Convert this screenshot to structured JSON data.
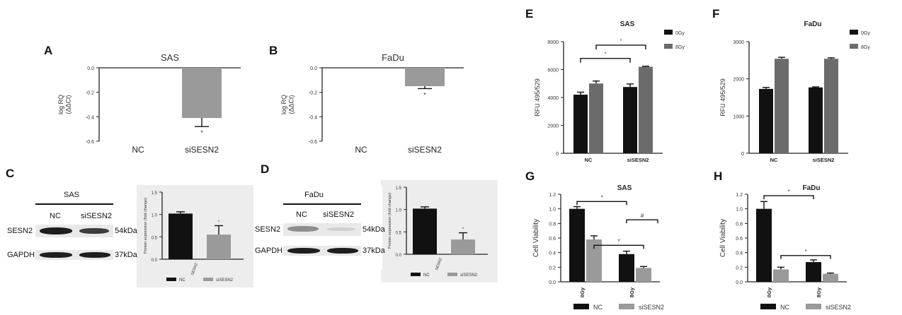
{
  "panels": {
    "A": "A",
    "B": "B",
    "C": "C",
    "D": "D",
    "E": "E",
    "F": "F",
    "G": "G",
    "H": "H"
  },
  "colors": {
    "black_bar": "#111111",
    "gray_bar": "#9a9a9a",
    "dark_gray_bar": "#6b6b6b"
  },
  "chart_data": [
    {
      "id": "A",
      "type": "bar",
      "title": "SAS",
      "ylabel": "log RQ\n(ΔΔCt)",
      "categories": [
        "NC",
        "siSESN2"
      ],
      "values": [
        0,
        -0.41
      ],
      "errors": [
        0,
        0.07
      ],
      "ylim": [
        -0.6,
        0.0
      ],
      "yticks": [
        "0.0",
        "-0.2",
        "-0.4",
        "-0.6"
      ],
      "annotations": [
        "*"
      ]
    },
    {
      "id": "B",
      "type": "bar",
      "title": "FaDu",
      "ylabel": "log RQ\n(ΔΔCt)",
      "categories": [
        "NC",
        "siSESN2"
      ],
      "values": [
        0,
        -0.15
      ],
      "errors": [
        0,
        0.02
      ],
      "ylim": [
        -0.6,
        0.0
      ],
      "yticks": [
        "0.0",
        "-0.2",
        "-0.4",
        "-0.6"
      ],
      "annotations": [
        "*"
      ]
    },
    {
      "id": "C",
      "type": "bar",
      "title": "",
      "ylabel": "Protein expression (fold change)",
      "xlabel": "SESN2",
      "series": [
        {
          "name": "NC",
          "values": [
            1.02
          ]
        },
        {
          "name": "siSESN2",
          "values": [
            0.55
          ]
        }
      ],
      "errors": [
        0.04,
        0.2
      ],
      "ylim": [
        0,
        1.5
      ],
      "yticks": [
        "0.0",
        "0.5",
        "1.0",
        "1.5"
      ],
      "annotations": [
        "*"
      ]
    },
    {
      "id": "D",
      "type": "bar",
      "title": "",
      "ylabel": "Protein expression (fold change)",
      "xlabel": "SESN2",
      "series": [
        {
          "name": "NC",
          "values": [
            1.02
          ]
        },
        {
          "name": "siSESN2",
          "values": [
            0.33
          ]
        }
      ],
      "errors": [
        0.04,
        0.15
      ],
      "ylim": [
        0,
        1.5
      ],
      "yticks": [
        "0.0",
        "0.5",
        "1.0",
        "1.5"
      ],
      "annotations": [
        "*"
      ]
    },
    {
      "id": "E",
      "type": "bar",
      "title": "SAS",
      "ylabel": "RFU 495/529",
      "categories": [
        "NC",
        "siSESN2"
      ],
      "series": [
        {
          "name": "0Gy",
          "values": [
            4200,
            4750
          ]
        },
        {
          "name": "8Gy",
          "values": [
            5000,
            6200
          ]
        }
      ],
      "errors": [
        [
          180,
          220
        ],
        [
          180,
          40
        ]
      ],
      "ylim": [
        0,
        8000
      ],
      "yticks": [
        "0",
        "2000",
        "4000",
        "6000",
        "8000"
      ],
      "legend": "top-right",
      "annotations": [
        "*",
        "*"
      ]
    },
    {
      "id": "F",
      "type": "bar",
      "title": "FaDu",
      "ylabel": "RFU 495/529",
      "categories": [
        "NC",
        "siSESN2"
      ],
      "series": [
        {
          "name": "0Gy",
          "values": [
            1730,
            1770
          ]
        },
        {
          "name": "8Gy",
          "values": [
            2540,
            2540
          ]
        }
      ],
      "errors": [
        [
          40,
          15
        ],
        [
          40,
          25
        ]
      ],
      "ylim": [
        0,
        3000
      ],
      "yticks": [
        "0",
        "1000",
        "2000",
        "3000"
      ],
      "legend": "top-right"
    },
    {
      "id": "G",
      "type": "bar",
      "title": "SAS",
      "ylabel": "Cell Viability",
      "categories": [
        "0Gy",
        "8Gy"
      ],
      "series": [
        {
          "name": "NC",
          "values": [
            1.0,
            0.38
          ]
        },
        {
          "name": "siSESN2",
          "values": [
            0.58,
            0.19
          ]
        }
      ],
      "errors": [
        [
          0.03,
          0.04
        ],
        [
          0.05,
          0.02
        ]
      ],
      "ylim": [
        0,
        1.2
      ],
      "yticks": [
        "0.0",
        "0.2",
        "0.4",
        "0.6",
        "0.8",
        "1.0",
        "1.2"
      ],
      "legend": "bottom",
      "annotations": [
        "*",
        "#",
        "*"
      ]
    },
    {
      "id": "H",
      "type": "bar",
      "title": "FaDu",
      "ylabel": "Cell Viability",
      "categories": [
        "0Gy",
        "8Gy"
      ],
      "series": [
        {
          "name": "NC",
          "values": [
            1.0,
            0.27
          ]
        },
        {
          "name": "siSESN2",
          "values": [
            0.17,
            0.11
          ]
        }
      ],
      "errors": [
        [
          0.1,
          0.03
        ],
        [
          0.03,
          0.01
        ]
      ],
      "ylim": [
        0,
        1.2
      ],
      "yticks": [
        "0.0",
        "0.2",
        "0.4",
        "0.6",
        "0.8",
        "1.0",
        "1.2"
      ],
      "legend": "bottom",
      "annotations": [
        "*",
        "*"
      ]
    }
  ],
  "blots": {
    "C": {
      "cell": "SAS",
      "lanes": [
        "NC",
        "siSESN2"
      ],
      "rows": [
        {
          "protein": "SESN2",
          "kda": "54kDa"
        },
        {
          "protein": "GAPDH",
          "kda": "37kDa"
        }
      ]
    },
    "D": {
      "cell": "FaDu",
      "lanes": [
        "NC",
        "siSESN2"
      ],
      "rows": [
        {
          "protein": "SESN2",
          "kda": "54kDa"
        },
        {
          "protein": "GAPDH",
          "kda": "37kDa"
        }
      ]
    }
  }
}
